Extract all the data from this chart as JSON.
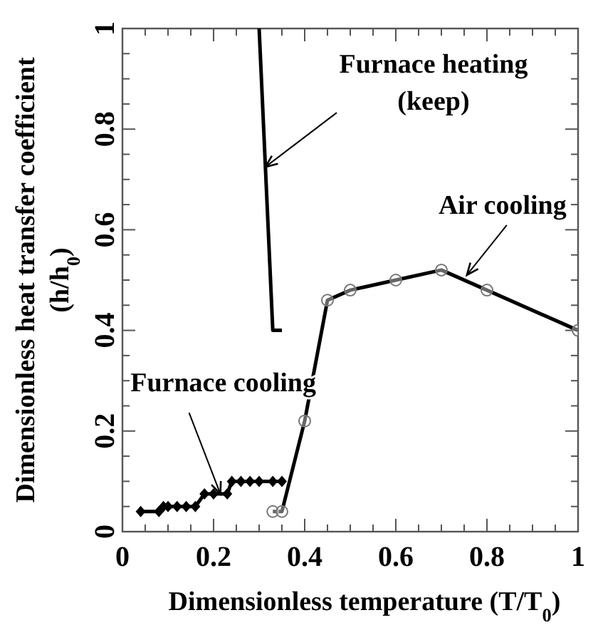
{
  "chart_data": {
    "type": "line",
    "xlabel": "Dimensionless temperature (T/T$_{0}$)",
    "ylabel": "Dimensionless heat transfer coefficient\n(h/h$_{0}$)",
    "xlim": [
      0,
      1
    ],
    "ylim": [
      0,
      1
    ],
    "xticks": [
      0,
      {
        "value": 0.05,
        "label": null
      },
      {
        "value": 0.1,
        "label": null
      },
      {
        "value": 0.15,
        "label": null
      },
      0.2,
      {
        "value": 0.25,
        "label": null
      },
      {
        "value": 0.3,
        "label": null
      },
      {
        "value": 0.35,
        "label": null
      },
      0.4,
      {
        "value": 0.45,
        "label": null
      },
      {
        "value": 0.5,
        "label": null
      },
      {
        "value": 0.55,
        "label": null
      },
      0.6,
      {
        "value": 0.65,
        "label": null
      },
      {
        "value": 0.7,
        "label": null
      },
      {
        "value": 0.75,
        "label": null
      },
      0.8,
      {
        "value": 0.85,
        "label": null
      },
      {
        "value": 0.9,
        "label": null
      },
      {
        "value": 0.95,
        "label": null
      },
      1
    ],
    "yticks": [
      0,
      {
        "value": 0.05,
        "label": null
      },
      {
        "value": 0.1,
        "label": null
      },
      {
        "value": 0.15,
        "label": null
      },
      0.2,
      {
        "value": 0.25,
        "label": null
      },
      {
        "value": 0.3,
        "label": null
      },
      {
        "value": 0.35,
        "label": null
      },
      0.4,
      {
        "value": 0.45,
        "label": null
      },
      {
        "value": 0.5,
        "label": null
      },
      {
        "value": 0.55,
        "label": null
      },
      0.6,
      {
        "value": 0.65,
        "label": null
      },
      {
        "value": 0.7,
        "label": null
      },
      {
        "value": 0.75,
        "label": null
      },
      0.8,
      {
        "value": 0.85,
        "label": null
      },
      {
        "value": 0.9,
        "label": null
      },
      {
        "value": 0.95,
        "label": null
      },
      1
    ],
    "grid": false,
    "line_style": "solid",
    "series": [
      {
        "color": "#000000",
        "marker": "none",
        "x": [
          0.3,
          0.33,
          0.35
        ],
        "values": [
          1.0,
          0.4,
          0.4
        ]
      },
      {
        "color": "#000000",
        "marker": "diamond",
        "x": [
          0.04,
          0.08,
          0.09,
          0.1,
          0.12,
          0.14,
          0.16,
          0.18,
          0.2,
          0.23,
          0.24,
          0.26,
          0.28,
          0.3,
          0.33,
          0.35
        ],
        "values": [
          0.04,
          0.04,
          0.05,
          0.05,
          0.05,
          0.05,
          0.05,
          0.075,
          0.075,
          0.075,
          0.1,
          0.1,
          0.1,
          0.1,
          0.1,
          0.1
        ]
      },
      {
        "color": "#000000",
        "marker": "circle",
        "x": [
          0.33,
          0.35,
          0.4,
          0.45,
          0.5,
          0.6,
          0.7,
          0.8,
          1.0
        ],
        "values": [
          0.04,
          0.04,
          0.22,
          0.46,
          0.48,
          0.5,
          0.52,
          0.48,
          0.4
        ]
      }
    ],
    "annotations": [
      {
        "text": "Furnace heating\n(keep)",
        "x": 0.314,
        "y": 0.725
      },
      {
        "text": "Air cooling",
        "x": 0.756,
        "y": 0.51
      },
      {
        "text": "Furnace cooling",
        "x": 0.215,
        "y": 0.075
      }
    ]
  }
}
